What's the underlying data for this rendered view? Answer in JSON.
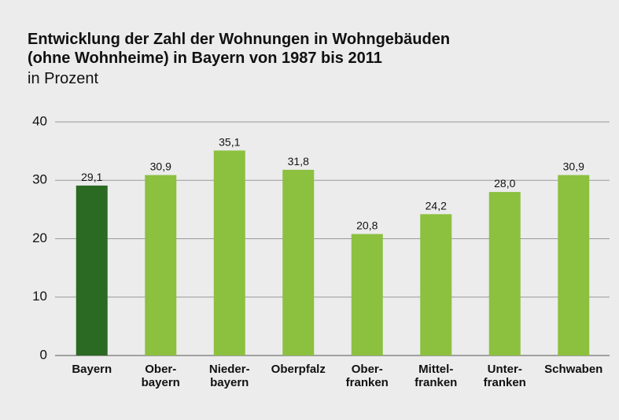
{
  "chart_data": {
    "type": "bar",
    "title": "Entwicklung der Zahl der Wohnungen in Wohngebäuden",
    "title_line2": "(ohne Wohnheime) in Bayern von 1987 bis 2011",
    "subtitle": "in Prozent",
    "categories": [
      "Bayern",
      "Ober-\nbayern",
      "Nieder-\nbayern",
      "Oberpfalz",
      "Ober-\nfranken",
      "Mittel-\nfranken",
      "Unter-\nfranken",
      "Schwaben"
    ],
    "values": [
      29.1,
      30.9,
      35.1,
      31.8,
      20.8,
      24.2,
      28.0,
      30.9
    ],
    "value_labels": [
      "29,1",
      "30,9",
      "35,1",
      "31,8",
      "20,8",
      "24,2",
      "28,0",
      "30,9"
    ],
    "colors": [
      "#2b6a23",
      "#8cc03f",
      "#8cc03f",
      "#8cc03f",
      "#8cc03f",
      "#8cc03f",
      "#8cc03f",
      "#8cc03f"
    ],
    "ylim": [
      0,
      40
    ],
    "yticks": [
      0,
      10,
      20,
      30,
      40
    ],
    "grid": true
  }
}
